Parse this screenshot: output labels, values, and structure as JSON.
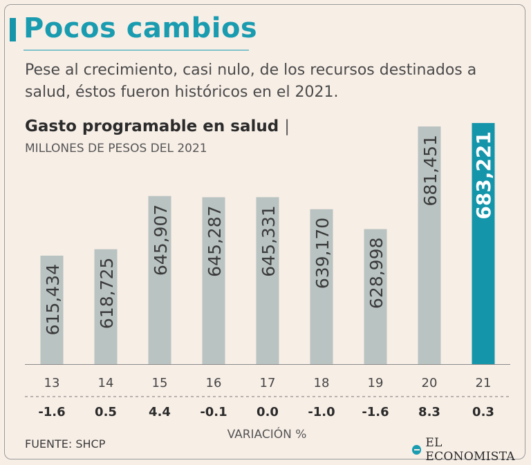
{
  "header": {
    "title": "Pocos cambios",
    "subtitle": "Pese al crecimiento, casi nulo, de los recursos destinados a salud, éstos fueron históricos en el 2021."
  },
  "footer": {
    "source": "FUENTE: SHCP",
    "logo_text": "EL ECONOMISTA"
  },
  "colors": {
    "bar": "#b9c3c2",
    "highlight": "#1595aa",
    "title": "#1a9cb0"
  },
  "chart_data": {
    "type": "bar",
    "title": "Gasto programable en salud",
    "title_separator": "|",
    "ylabel": "MILLONES DE PESOS DEL 2021",
    "xlabel": "VARIACIÓN %",
    "categories": [
      "13",
      "14",
      "15",
      "16",
      "17",
      "18",
      "19",
      "20",
      "21"
    ],
    "values": [
      615434,
      618725,
      645907,
      645287,
      645331,
      639170,
      628998,
      681451,
      683221
    ],
    "value_labels": [
      "615,434",
      "618,725",
      "645,907",
      "645,287",
      "645,331",
      "639,170",
      "628,998",
      "681,451",
      "683,221"
    ],
    "variation": [
      "-1.6",
      "0.5",
      "4.4",
      "-0.1",
      "0.0",
      "-1.0",
      "-1.6",
      "8.3",
      "0.3"
    ],
    "highlight_index": 8,
    "ylim": [
      560000,
      685000
    ]
  }
}
